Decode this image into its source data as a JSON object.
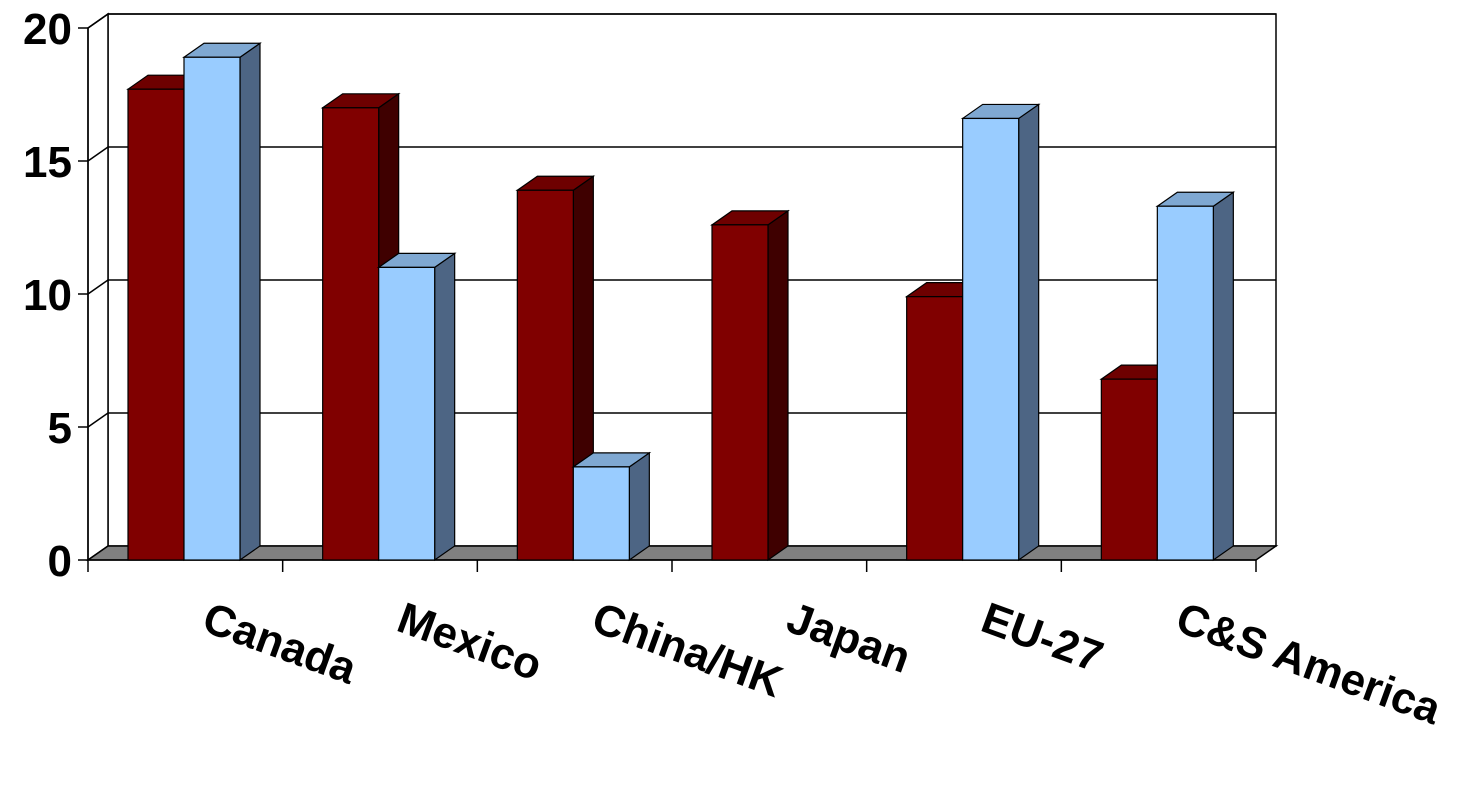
{
  "chart_data": {
    "type": "bar",
    "title": "",
    "xlabel": "",
    "ylabel": "",
    "ylim": [
      0,
      20
    ],
    "yticks": [
      "0",
      "5",
      "10",
      "15",
      "20"
    ],
    "grid": true,
    "legend": "none",
    "categories": [
      "Canada",
      "Mexico",
      "China/HK",
      "Japan",
      "EU-27",
      "C&S America"
    ],
    "series": [
      {
        "values": [
          17.7,
          17.0,
          13.9,
          12.6,
          9.9,
          6.8
        ]
      },
      {
        "values": [
          18.9,
          11.0,
          3.5,
          0,
          16.6,
          13.3
        ]
      }
    ],
    "colors": {
      "series_1_front": "#800000",
      "series_1_top": "#6e0000",
      "series_1_side": "#3f0000",
      "series_2_front": "#99ccff",
      "series_2_top": "#7fa8d2",
      "series_2_side": "#4d6584",
      "floor": "#808080"
    }
  }
}
